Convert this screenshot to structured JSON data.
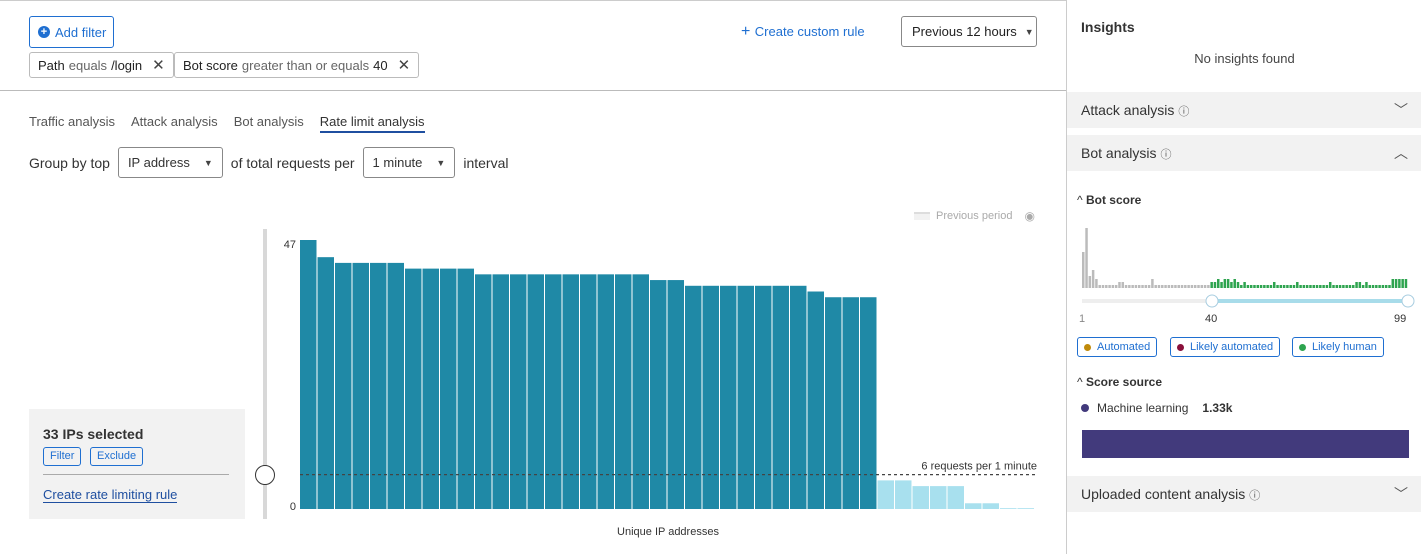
{
  "toolbar": {
    "add_filter": "Add filter",
    "create_custom_rule": "Create custom rule",
    "time_range": "Previous 12 hours"
  },
  "filters": [
    {
      "field": "Path",
      "op": "equals",
      "value": "/login"
    },
    {
      "field": "Bot score",
      "op": "greater than or equals",
      "value": "40"
    }
  ],
  "tabs": [
    {
      "label": "Traffic analysis"
    },
    {
      "label": "Attack analysis"
    },
    {
      "label": "Bot analysis"
    },
    {
      "label": "Rate limit analysis",
      "active": true
    }
  ],
  "group_by": {
    "prefix": "Group by top",
    "field": "IP address",
    "middle": "of total requests per",
    "interval": "1 minute",
    "suffix": "interval"
  },
  "legend": {
    "previous_period": "Previous period"
  },
  "selection": {
    "title": "33 IPs selected",
    "filter": "Filter",
    "exclude": "Exclude",
    "create_rule": "Create rate limiting rule"
  },
  "chart_data": {
    "type": "bar",
    "xlabel": "Unique IP addresses",
    "ylabel": "",
    "ylim": [
      0,
      47
    ],
    "yticks": [
      "0",
      "47"
    ],
    "threshold": {
      "value": 6,
      "label": "6 requests per 1 minute"
    },
    "values": [
      47,
      44,
      43,
      43,
      43,
      43,
      42,
      42,
      42,
      42,
      41,
      41,
      41,
      41,
      41,
      41,
      41,
      41,
      41,
      41,
      40,
      40,
      39,
      39,
      39,
      39,
      39,
      39,
      39,
      38,
      37,
      37,
      37,
      5,
      5,
      4,
      4,
      4,
      1,
      1,
      0,
      0
    ],
    "selected_count": 33,
    "colors": {
      "selected": "#1f89a6",
      "unselected": "#a8e0ee"
    }
  },
  "sidebar": {
    "insights_title": "Insights",
    "no_insights": "No insights found",
    "attack_analysis": "Attack analysis",
    "bot_analysis": "Bot analysis",
    "uploaded_content": "Uploaded content analysis",
    "bot_score": {
      "title": "Bot score",
      "min_label": "1",
      "selected_label": "40",
      "max_label": "99",
      "range": [
        40,
        99
      ],
      "histogram": [
        12,
        20,
        4,
        6,
        3,
        1,
        1,
        1,
        1,
        1,
        1,
        2,
        2,
        1,
        1,
        1,
        1,
        1,
        1,
        1,
        1,
        3,
        1,
        1,
        1,
        1,
        1,
        1,
        1,
        1,
        1,
        1,
        1,
        1,
        1,
        1,
        1,
        1,
        1,
        2,
        2,
        3,
        2,
        3,
        3,
        2,
        3,
        2,
        1,
        2,
        1,
        1,
        1,
        1,
        1,
        1,
        1,
        1,
        2,
        1,
        1,
        1,
        1,
        1,
        1,
        2,
        1,
        1,
        1,
        1,
        1,
        1,
        1,
        1,
        1,
        2,
        1,
        1,
        1,
        1,
        1,
        1,
        1,
        2,
        2,
        1,
        2,
        1,
        1,
        1,
        1,
        1,
        1,
        1,
        3,
        3,
        3,
        3,
        3
      ],
      "legend": [
        {
          "label": "Automated",
          "color": "#c08a0a"
        },
        {
          "label": "Likely automated",
          "color": "#8a0f3a"
        },
        {
          "label": "Likely human",
          "color": "#2ea44f"
        }
      ]
    },
    "score_source": {
      "title": "Score source",
      "label": "Machine learning",
      "value": "1.33k",
      "color": "#423a7c"
    }
  }
}
